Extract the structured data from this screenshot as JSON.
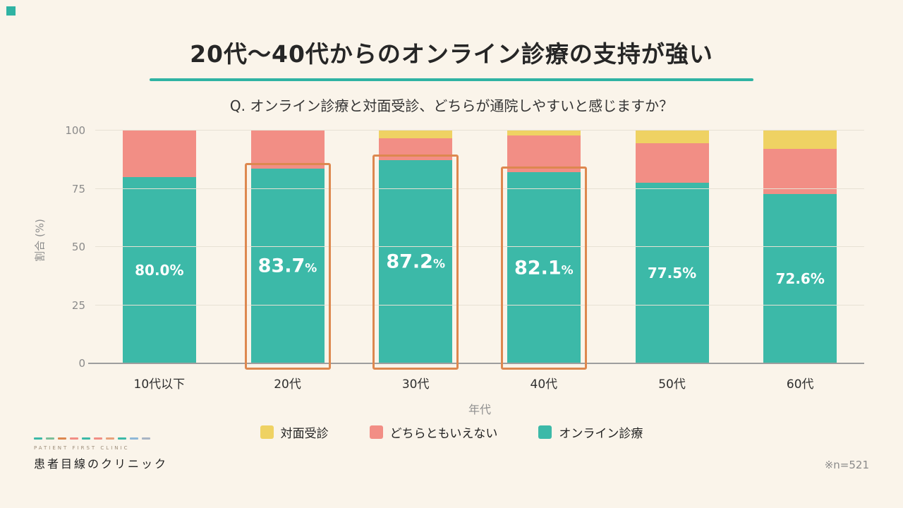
{
  "page": {
    "background_color": "#faf4ea",
    "corner_accent_color": "#2fb3a3"
  },
  "header": {
    "title": "20代〜40代からのオンライン診療の支持が強い",
    "underline_color": "#2fb3a3",
    "subtitle": "Q. オンライン診療と対面受診、どちらが通院しやすいと感じますか？"
  },
  "chart_data": {
    "type": "bar",
    "subtype": "stacked-percent",
    "categories": [
      "10代以下",
      "20代",
      "30代",
      "40代",
      "50代",
      "60代"
    ],
    "series": [
      {
        "name": "オンライン診療",
        "color": "#3cb9a8",
        "values": [
          80.0,
          83.7,
          87.2,
          82.1,
          77.5,
          72.6
        ]
      },
      {
        "name": "どちらともいえない",
        "color": "#f28e85",
        "values": [
          20.0,
          16.3,
          9.5,
          15.9,
          17.0,
          19.4
        ]
      },
      {
        "name": "対面受診",
        "color": "#efd263",
        "values": [
          0.0,
          0.0,
          3.3,
          2.0,
          5.5,
          8.0
        ]
      }
    ],
    "bar_labels": [
      "80.0",
      "83.7",
      "87.2",
      "82.1",
      "77.5",
      "72.6"
    ],
    "bar_label_suffix": "%",
    "highlighted_categories": [
      1,
      2,
      3
    ],
    "highlight_color": "#dd884f",
    "xlabel": "年代",
    "ylabel": "割合 (%)",
    "yticks": [
      0,
      25,
      50,
      75,
      100
    ],
    "ylim": [
      0,
      100
    ],
    "grid": true,
    "legend_position": "bottom",
    "legend": [
      {
        "label": "対面受診",
        "color": "#efd263"
      },
      {
        "label": "どちらともいえない",
        "color": "#f28e85"
      },
      {
        "label": "オンライン診療",
        "color": "#3cb9a8"
      }
    ]
  },
  "footer": {
    "brand_small": "PATIENT FIRST CLINIC",
    "brand_name": "患者目線のクリニック",
    "note": "※n=521",
    "dash_colors": [
      "#3cb9a8",
      "#7cbf9a",
      "#dd884f",
      "#f28e85",
      "#3cb9a8",
      "#f28e85",
      "#e8a27c",
      "#3cb9a8",
      "#8fb8d8",
      "#a8b4c4"
    ]
  }
}
